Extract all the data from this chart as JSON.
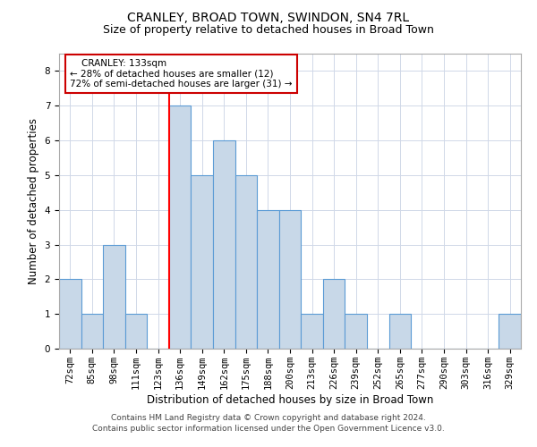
{
  "title": "CRANLEY, BROAD TOWN, SWINDON, SN4 7RL",
  "subtitle": "Size of property relative to detached houses in Broad Town",
  "xlabel": "Distribution of detached houses by size in Broad Town",
  "ylabel": "Number of detached properties",
  "categories": [
    "72sqm",
    "85sqm",
    "98sqm",
    "111sqm",
    "123sqm",
    "136sqm",
    "149sqm",
    "162sqm",
    "175sqm",
    "188sqm",
    "200sqm",
    "213sqm",
    "226sqm",
    "239sqm",
    "252sqm",
    "265sqm",
    "277sqm",
    "290sqm",
    "303sqm",
    "316sqm",
    "329sqm"
  ],
  "values": [
    2,
    1,
    3,
    1,
    0,
    7,
    5,
    6,
    5,
    4,
    4,
    1,
    2,
    1,
    0,
    1,
    0,
    0,
    0,
    0,
    1
  ],
  "bar_color": "#c8d8e8",
  "bar_edgecolor": "#5b9bd5",
  "redline_index": 4.5,
  "redline_label": "    CRANLEY: 133sqm",
  "annotation_line1": "← 28% of detached houses are smaller (12)",
  "annotation_line2": "72% of semi-detached houses are larger (31) →",
  "annotation_box_color": "#ffffff",
  "annotation_box_edgecolor": "#cc0000",
  "ylim": [
    0,
    8.5
  ],
  "yticks": [
    0,
    1,
    2,
    3,
    4,
    5,
    6,
    7,
    8
  ],
  "grid_color": "#d0d8e8",
  "footnote1": "Contains HM Land Registry data © Crown copyright and database right 2024.",
  "footnote2": "Contains public sector information licensed under the Open Government Licence v3.0.",
  "title_fontsize": 10,
  "subtitle_fontsize": 9,
  "xlabel_fontsize": 8.5,
  "ylabel_fontsize": 8.5,
  "tick_fontsize": 7.5,
  "annotation_fontsize": 7.5,
  "footnote_fontsize": 6.5
}
